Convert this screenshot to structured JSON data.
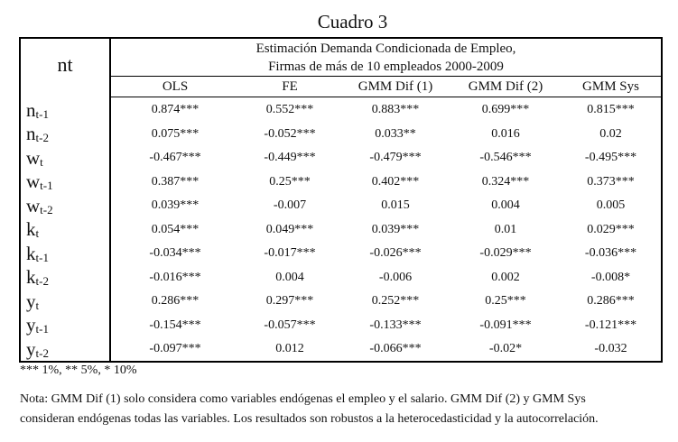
{
  "title": "Cuadro 3",
  "stub_header": "nt",
  "header_line1": "Estimación Demanda Condicionada de Empleo,",
  "header_line2": "Firmas de más de 10 empleados 2000-2009",
  "columns": [
    "OLS",
    "FE",
    "GMM Dif (1)",
    "GMM Dif (2)",
    "GMM Sys"
  ],
  "rows": [
    {
      "var": "n",
      "sub": "t-1",
      "values": [
        "0.874***",
        "0.552***",
        "0.883***",
        "0.699***",
        "0.815***"
      ]
    },
    {
      "var": "n",
      "sub": "t-2",
      "values": [
        "0.075***",
        "-0.052***",
        "0.033**",
        "0.016",
        "0.02"
      ]
    },
    {
      "var": "w",
      "sub": "t",
      "values": [
        "-0.467***",
        "-0.449***",
        "-0.479***",
        "-0.546***",
        "-0.495***"
      ]
    },
    {
      "var": "w",
      "sub": "t-1",
      "values": [
        "0.387***",
        "0.25***",
        "0.402***",
        "0.324***",
        "0.373***"
      ]
    },
    {
      "var": "w",
      "sub": "t-2",
      "values": [
        "0.039***",
        "-0.007",
        "0.015",
        "0.004",
        "0.005"
      ]
    },
    {
      "var": "k",
      "sub": "t",
      "values": [
        "0.054***",
        "0.049***",
        "0.039***",
        "0.01",
        "0.029***"
      ]
    },
    {
      "var": "k",
      "sub": "t-1",
      "values": [
        "-0.034***",
        "-0.017***",
        "-0.026***",
        "-0.029***",
        "-0.036***"
      ]
    },
    {
      "var": "k",
      "sub": "t-2",
      "values": [
        "-0.016***",
        "0.004",
        "-0.006",
        "0.002",
        "-0.008*"
      ]
    },
    {
      "var": "y",
      "sub": "t",
      "values": [
        "0.286***",
        "0.297***",
        "0.252***",
        "0.25***",
        "0.286***"
      ]
    },
    {
      "var": "y",
      "sub": "t-1",
      "values": [
        "-0.154***",
        "-0.057***",
        "-0.133***",
        "-0.091***",
        "-0.121***"
      ]
    },
    {
      "var": "y",
      "sub": "t-2",
      "values": [
        "-0.097***",
        "0.012",
        "-0.066***",
        "-0.02*",
        "-0.032"
      ]
    }
  ],
  "significance": "*** 1%, ** 5%, * 10%",
  "note_line1": "Nota: GMM Dif (1) solo considera como variables endógenas el empleo y el salario. GMM Dif (2)  y GMM Sys",
  "note_line2": "consideran endógenas todas las variables. Los resultados son robustos a la heterocedasticidad y la autocorrelación."
}
